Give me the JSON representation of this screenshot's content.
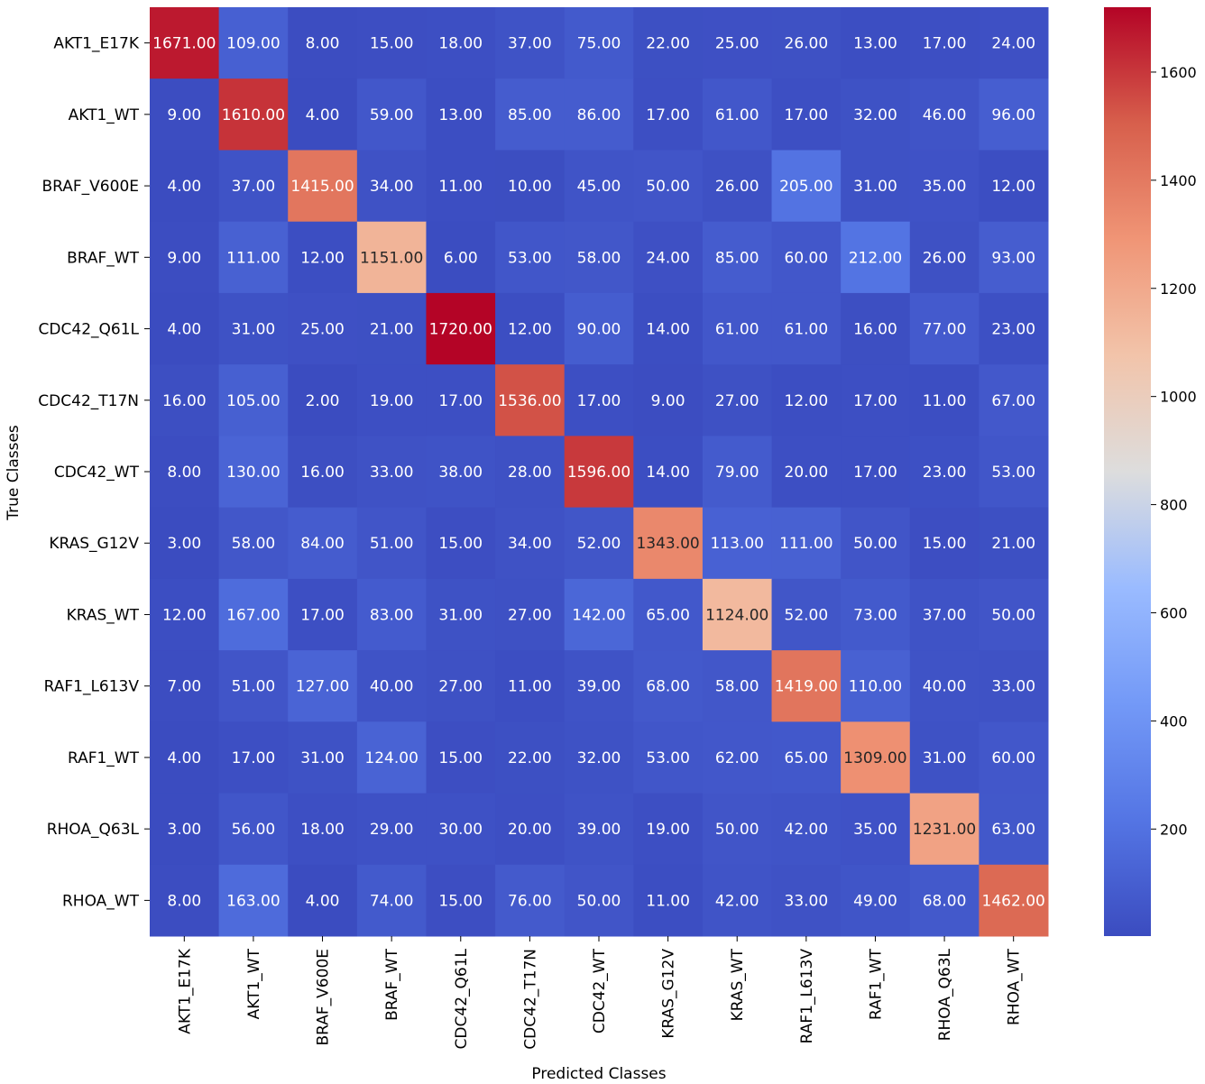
{
  "chart_data": {
    "type": "heatmap",
    "title": "",
    "xlabel": "Predicted Classes",
    "ylabel": "True Classes",
    "x_categories": [
      "AKT1_E17K",
      "AKT1_WT",
      "BRAF_V600E",
      "BRAF_WT",
      "CDC42_Q61L",
      "CDC42_T17N",
      "CDC42_WT",
      "KRAS_G12V",
      "KRAS_WT",
      "RAF1_L613V",
      "RAF1_WT",
      "RHOA_Q63L",
      "RHOA_WT"
    ],
    "y_categories": [
      "AKT1_E17K",
      "AKT1_WT",
      "BRAF_V600E",
      "BRAF_WT",
      "CDC42_Q61L",
      "CDC42_T17N",
      "CDC42_WT",
      "KRAS_G12V",
      "KRAS_WT",
      "RAF1_L613V",
      "RAF1_WT",
      "RHOA_Q63L",
      "RHOA_WT"
    ],
    "values": [
      [
        1671,
        109,
        8,
        15,
        18,
        37,
        75,
        22,
        25,
        26,
        13,
        17,
        24
      ],
      [
        9,
        1610,
        4,
        59,
        13,
        85,
        86,
        17,
        61,
        17,
        32,
        46,
        96
      ],
      [
        4,
        37,
        1415,
        34,
        11,
        10,
        45,
        50,
        26,
        205,
        31,
        35,
        12
      ],
      [
        9,
        111,
        12,
        1151,
        6,
        53,
        58,
        24,
        85,
        60,
        212,
        26,
        93
      ],
      [
        4,
        31,
        25,
        21,
        1720,
        12,
        90,
        14,
        61,
        61,
        16,
        77,
        23
      ],
      [
        16,
        105,
        2,
        19,
        17,
        1536,
        17,
        9,
        27,
        12,
        17,
        11,
        67
      ],
      [
        8,
        130,
        16,
        33,
        38,
        28,
        1596,
        14,
        79,
        20,
        17,
        23,
        53
      ],
      [
        3,
        58,
        84,
        51,
        15,
        34,
        52,
        1343,
        113,
        111,
        50,
        15,
        21
      ],
      [
        12,
        167,
        17,
        83,
        31,
        27,
        142,
        65,
        1124,
        52,
        73,
        37,
        50
      ],
      [
        7,
        51,
        127,
        40,
        27,
        11,
        39,
        68,
        58,
        1419,
        110,
        40,
        33
      ],
      [
        4,
        17,
        31,
        124,
        15,
        22,
        32,
        53,
        62,
        65,
        1309,
        31,
        60
      ],
      [
        3,
        56,
        18,
        29,
        30,
        20,
        39,
        19,
        50,
        42,
        35,
        1231,
        63
      ],
      [
        8,
        163,
        4,
        74,
        15,
        76,
        50,
        11,
        42,
        33,
        49,
        68,
        1462
      ]
    ],
    "value_format": "2 decimals",
    "colormap": "coolwarm",
    "vmin": 2,
    "vmax": 1720,
    "colorbar_ticks": [
      200,
      400,
      600,
      800,
      1000,
      1200,
      1400,
      1600
    ],
    "colorbar_labels": [
      "200",
      "400",
      "600",
      "800",
      "1000",
      "1200",
      "1400",
      "1600"
    ],
    "colors": {
      "low": "#3b4cc0",
      "mid": "#dddddd",
      "high": "#b40426"
    }
  }
}
